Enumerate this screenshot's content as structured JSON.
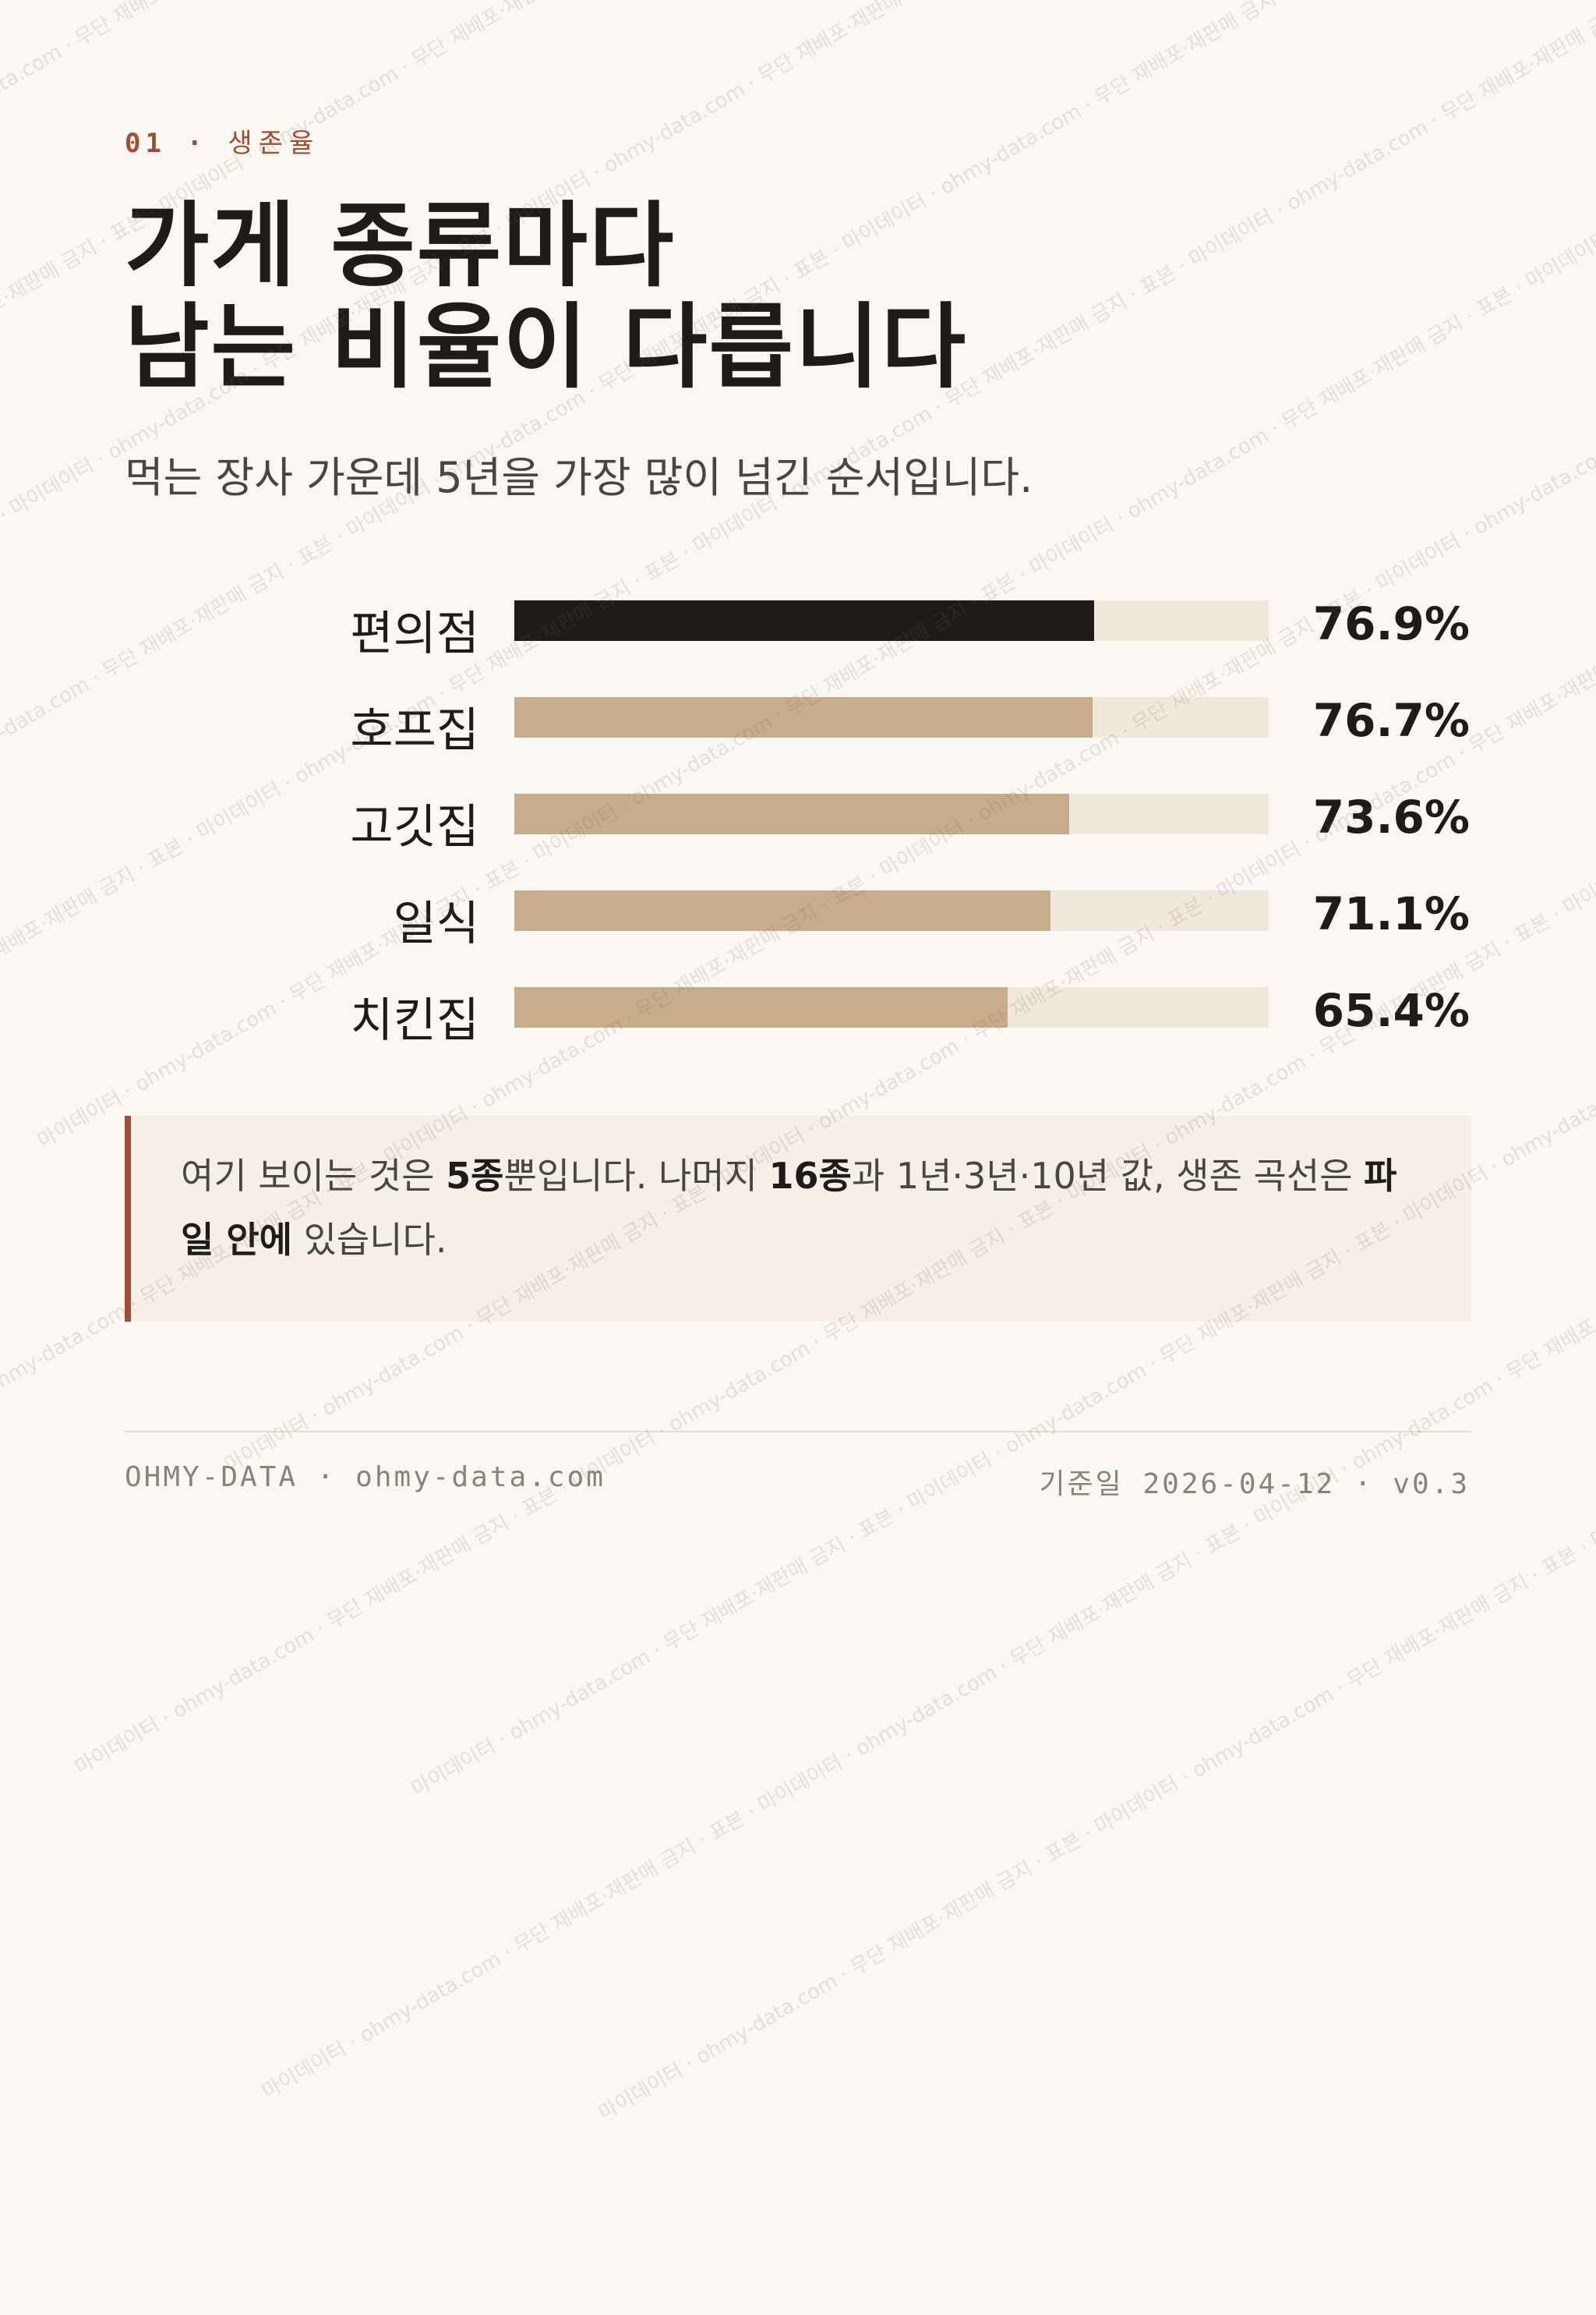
{
  "eyebrow": {
    "number": "01",
    "separator": "·",
    "label": "생존율"
  },
  "title": {
    "line1": "가게 종류마다",
    "line2": "남는 비율이 다릅니다"
  },
  "subtitle": "먹는 장사 가운데 5년을 가장 많이 넘긴 순서입니다.",
  "chart_data": {
    "type": "bar",
    "orientation": "horizontal",
    "categories": [
      "편의점",
      "호프집",
      "고깃집",
      "일식",
      "치킨집"
    ],
    "values": [
      76.9,
      76.7,
      73.6,
      71.1,
      65.4
    ],
    "value_labels": [
      "76.9%",
      "76.7%",
      "73.6%",
      "71.1%",
      "65.4%"
    ],
    "xlim": [
      0,
      100
    ],
    "highlight_index": 0,
    "title": "",
    "xlabel": "",
    "ylabel": ""
  },
  "colors": {
    "highlight_bar": "#1f1b18",
    "bar": "#c8ad8c",
    "track": "#f1e8dc",
    "accent": "#a34d35",
    "background": "#fbf8f3"
  },
  "note": {
    "t1": "여기 보이는 것은 ",
    "b1": "5종",
    "t2": "뿐입니다. 나머지 ",
    "b2": "16종",
    "t3": "과 1년·3년·10년 값, 생존 곡선은 ",
    "b3": "파일 안에",
    "t4": " 있습니다."
  },
  "footer": {
    "brand": "OHMY-DATA",
    "separator": "·",
    "site": "ohmy-data.com",
    "date_label": "기준일",
    "date": "2026-04-12",
    "version": "v0.3"
  },
  "watermark": "마이데이터 · ohmy-data.com · 무단 재배포·재판매 금지 · 표본"
}
